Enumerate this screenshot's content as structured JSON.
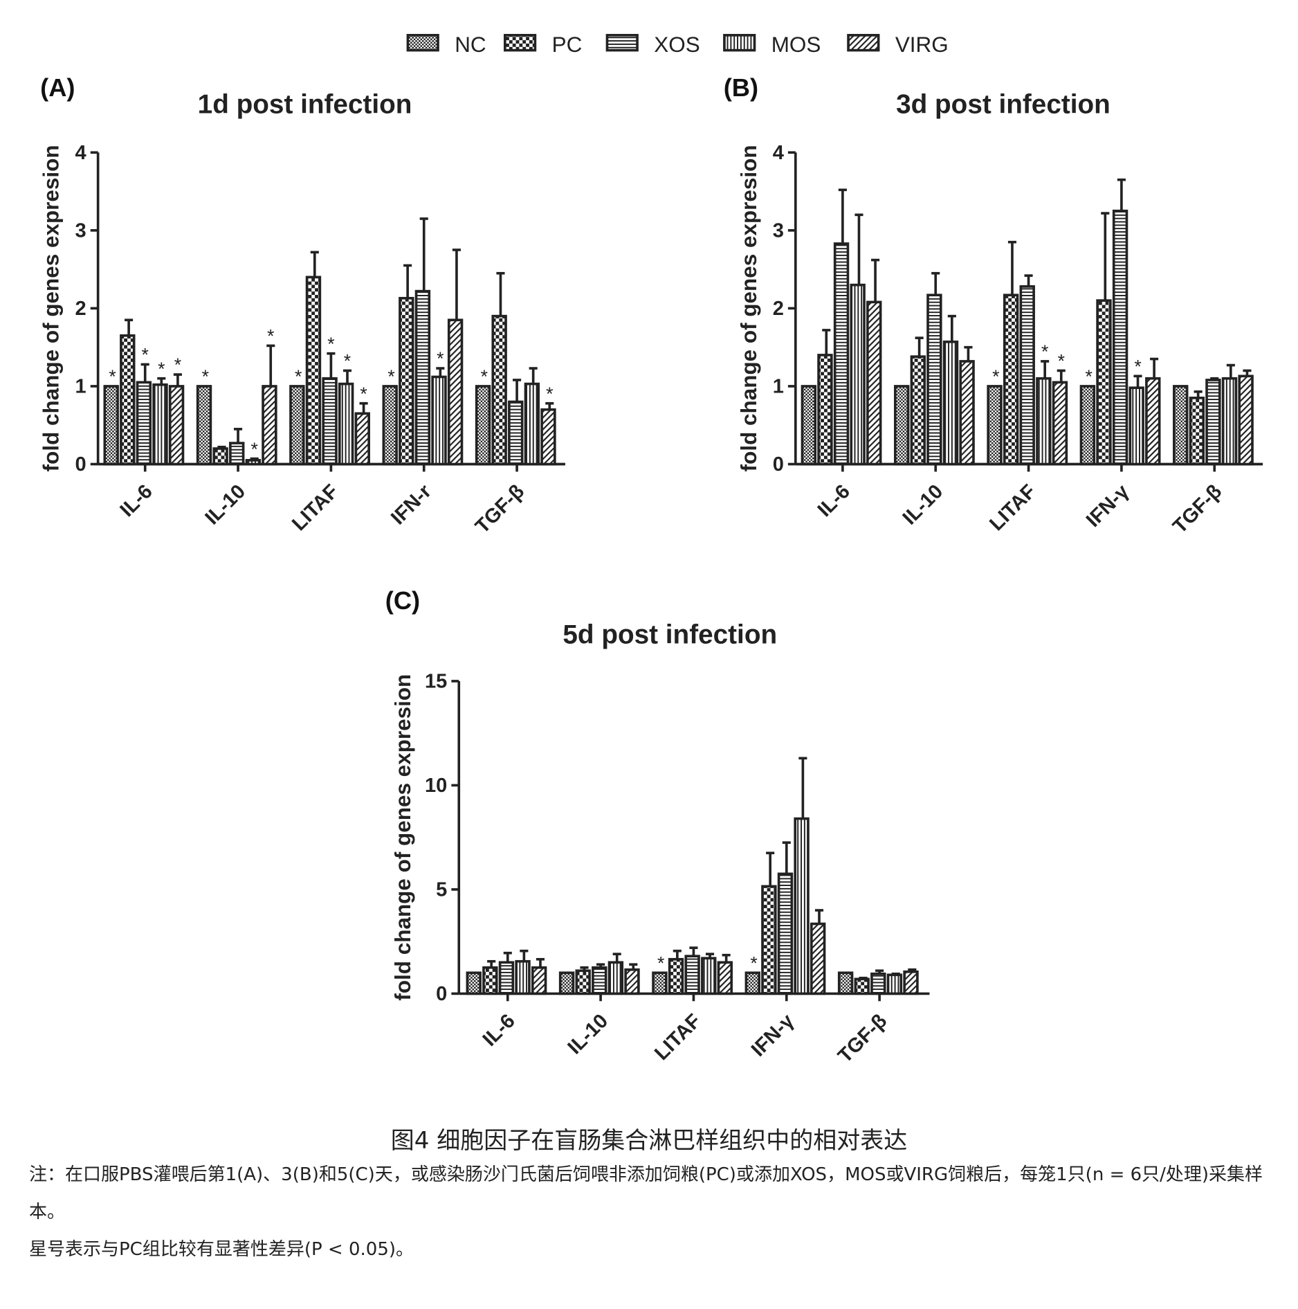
{
  "legend": [
    "NC",
    "PC",
    "XOS",
    "MOS",
    "VIRG"
  ],
  "caption": {
    "title": "图4 细胞因子在盲肠集合淋巴样组织中的相对表达",
    "note": "注：在口服PBS灌喂后第1(A)、3(B)和5(C)天，或感染肠沙门氏菌后饲喂非添加饲粮(PC)或添加XOS，MOS或VIRG饲粮后，每笼1只(n = 6只/处理)采集样本。",
    "note2": "星号表示与PC组比较有显著性差异(P < 0.05)。"
  },
  "chart_data": [
    {
      "type": "bar",
      "panel": "(A)",
      "title": "1d post infection",
      "ylabel": "fold change of genes expresion",
      "ylim": [
        0,
        4
      ],
      "yticks": [
        "0",
        "1",
        "2",
        "3",
        "4"
      ],
      "categories": [
        "IL-6",
        "IL-10",
        "LITAF",
        "IFN-r",
        "TGF-β"
      ],
      "series": [
        {
          "name": "NC",
          "values": [
            1,
            1,
            1,
            1,
            1
          ],
          "err": [
            1,
            1,
            1,
            1,
            1
          ],
          "sig": [
            true,
            true,
            true,
            true,
            true
          ]
        },
        {
          "name": "PC",
          "values": [
            1.65,
            0.2,
            2.4,
            2.13,
            1.9
          ],
          "err": [
            1.85,
            0.22,
            2.72,
            2.55,
            2.45
          ],
          "sig": [
            false,
            false,
            false,
            false,
            false
          ]
        },
        {
          "name": "XOS",
          "values": [
            1.05,
            0.27,
            1.1,
            2.22,
            0.8
          ],
          "err": [
            1.28,
            0.45,
            1.42,
            3.15,
            1.08
          ],
          "sig": [
            true,
            false,
            true,
            false,
            false
          ]
        },
        {
          "name": "MOS",
          "values": [
            1.02,
            0.05,
            1.03,
            1.12,
            1.03
          ],
          "err": [
            1.1,
            0.07,
            1.2,
            1.23,
            1.23
          ],
          "sig": [
            true,
            true,
            true,
            true,
            false
          ]
        },
        {
          "name": "VIRG",
          "values": [
            1.0,
            1.0,
            0.65,
            1.85,
            0.7
          ],
          "err": [
            1.15,
            1.52,
            0.78,
            2.75,
            0.78
          ],
          "sig": [
            true,
            true,
            true,
            false,
            true
          ]
        }
      ]
    },
    {
      "type": "bar",
      "panel": "(B)",
      "title": "3d post infection",
      "ylabel": "fold change of genes expresion",
      "ylim": [
        0,
        4
      ],
      "yticks": [
        "0",
        "1",
        "2",
        "3",
        "4"
      ],
      "categories": [
        "IL-6",
        "IL-10",
        "LITAF",
        "IFN-γ",
        "TGF-β"
      ],
      "series": [
        {
          "name": "NC",
          "values": [
            1,
            1,
            1,
            1,
            1
          ],
          "err": [
            1,
            1,
            1,
            1,
            1
          ],
          "sig": [
            false,
            false,
            true,
            true,
            false
          ]
        },
        {
          "name": "PC",
          "values": [
            1.4,
            1.38,
            2.17,
            2.1,
            0.85
          ],
          "err": [
            1.72,
            1.62,
            2.85,
            3.22,
            0.93
          ],
          "sig": [
            false,
            false,
            false,
            false,
            false
          ]
        },
        {
          "name": "XOS",
          "values": [
            2.83,
            2.17,
            2.28,
            3.25,
            1.08
          ],
          "err": [
            3.52,
            2.45,
            2.42,
            3.65,
            1.1
          ],
          "sig": [
            false,
            false,
            false,
            false,
            false
          ]
        },
        {
          "name": "MOS",
          "values": [
            2.3,
            1.57,
            1.1,
            0.98,
            1.1
          ],
          "err": [
            3.2,
            1.9,
            1.32,
            1.13,
            1.27
          ],
          "sig": [
            false,
            false,
            true,
            true,
            false
          ]
        },
        {
          "name": "VIRG",
          "values": [
            2.08,
            1.32,
            1.05,
            1.1,
            1.13
          ],
          "err": [
            2.62,
            1.5,
            1.2,
            1.35,
            1.2
          ],
          "sig": [
            false,
            false,
            true,
            false,
            false
          ]
        }
      ]
    },
    {
      "type": "bar",
      "panel": "(C)",
      "title": "5d post infection",
      "ylabel": "fold change of genes expresion",
      "ylim": [
        0,
        15
      ],
      "yticks": [
        "0",
        "5",
        "10",
        "15"
      ],
      "categories": [
        "IL-6",
        "IL-10",
        "LITAF",
        "IFN-γ",
        "TGF-β"
      ],
      "series": [
        {
          "name": "NC",
          "values": [
            1,
            1,
            1,
            1,
            1
          ],
          "err": [
            1,
            1,
            1,
            1,
            1
          ],
          "sig": [
            false,
            false,
            true,
            true,
            false
          ]
        },
        {
          "name": "PC",
          "values": [
            1.25,
            1.1,
            1.65,
            5.15,
            0.7
          ],
          "err": [
            1.55,
            1.25,
            2.05,
            6.75,
            0.75
          ],
          "sig": [
            false,
            false,
            false,
            false,
            false
          ]
        },
        {
          "name": "XOS",
          "values": [
            1.5,
            1.25,
            1.8,
            5.75,
            0.95
          ],
          "err": [
            1.95,
            1.4,
            2.2,
            7.25,
            1.1
          ],
          "sig": [
            false,
            false,
            false,
            false,
            false
          ]
        },
        {
          "name": "MOS",
          "values": [
            1.55,
            1.5,
            1.7,
            8.4,
            0.9
          ],
          "err": [
            2.05,
            1.9,
            1.9,
            11.3,
            0.95
          ],
          "sig": [
            false,
            false,
            false,
            false,
            false
          ]
        },
        {
          "name": "VIRG",
          "values": [
            1.25,
            1.15,
            1.5,
            3.35,
            1.05
          ],
          "err": [
            1.65,
            1.4,
            1.85,
            4.0,
            1.15
          ],
          "sig": [
            false,
            false,
            false,
            false,
            false
          ]
        }
      ]
    }
  ]
}
